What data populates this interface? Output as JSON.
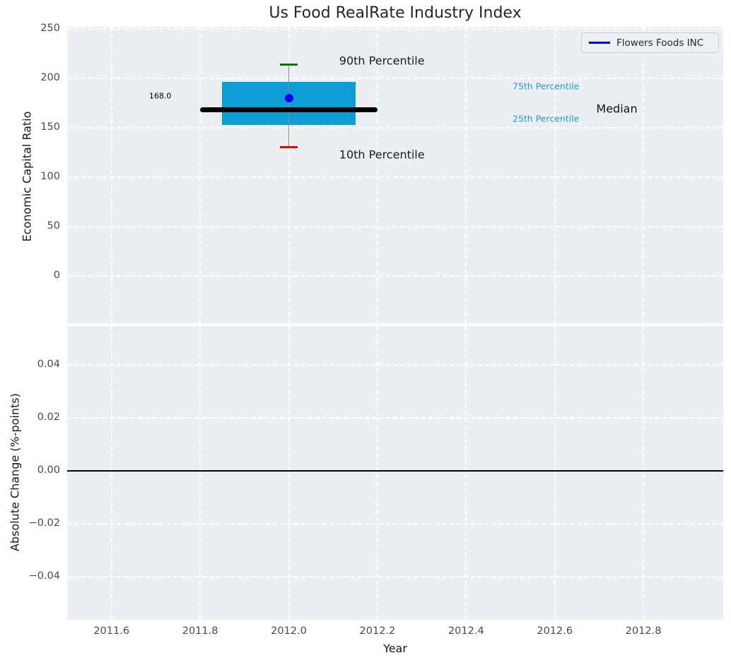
{
  "title": "Us Food RealRate Industry Index",
  "legend": {
    "label": "Flowers Foods INC",
    "line_color": "#0000ee"
  },
  "colors": {
    "figure_bg": "#ffffff",
    "axes_bg": "#ebeff1",
    "grid": "#ffffff",
    "tick_label": "#3e4c60",
    "box_fill": "#0a9ed5",
    "median_line": "#000000",
    "whisker": "#8a8a8a",
    "cap_90th": "#007d00",
    "cap_10th": "#ee0000",
    "company_marker": "#0000ee",
    "percentile_label": "#1f9bcd",
    "zero_line": "#000000"
  },
  "chart_data": [
    {
      "type": "box",
      "title": "Us Food RealRate Industry Index",
      "ylabel": "Economic Capital Ratio",
      "xlabel": "",
      "xlim": [
        2011.5,
        2012.98
      ],
      "ylim": [
        -48,
        252
      ],
      "grid": true,
      "show_xtick_labels": false,
      "xticks": [
        2011.6,
        2011.8,
        2012.0,
        2012.2,
        2012.4,
        2012.6,
        2012.8
      ],
      "xtick_labels": [
        "2011.6",
        "2011.8",
        "2012.0",
        "2012.2",
        "2012.4",
        "2012.6",
        "2012.8"
      ],
      "yticks": [
        250,
        200,
        150,
        100,
        50,
        0
      ],
      "ytick_labels": [
        "250",
        "200",
        "150",
        "100",
        "50",
        "0"
      ],
      "box": {
        "year": 2012.0,
        "median": 168.0,
        "median_label": "168.0",
        "q1": 153,
        "q3": 196,
        "p10": 130,
        "p90": 214,
        "box_x": [
          2011.85,
          2012.15
        ],
        "median_x": [
          2011.8,
          2012.2
        ],
        "company_point": {
          "name": "Flowers Foods INC",
          "x": 2012.0,
          "y": 180
        }
      },
      "annotations": [
        {
          "text": "90th Percentile",
          "x": 2012.21,
          "y": 218,
          "size": 16,
          "color": "#1a1a1a"
        },
        {
          "text": "10th Percentile",
          "x": 2012.21,
          "y": 123,
          "size": 16,
          "color": "#1a1a1a"
        },
        {
          "text": "168.0",
          "x": 2011.71,
          "y": 182,
          "size": 11,
          "color": "#000000"
        },
        {
          "text": "75th Percentile",
          "x": 2012.58,
          "y": 192,
          "size": 12.5,
          "color": "#1f9bcd"
        },
        {
          "text": "25th Percentile",
          "x": 2012.58,
          "y": 159,
          "size": 12.5,
          "color": "#1f9bcd"
        },
        {
          "text": "Median",
          "x": 2012.74,
          "y": 169,
          "size": 16,
          "color": "#111111"
        }
      ]
    },
    {
      "type": "line",
      "title": "",
      "ylabel": "Absolute Change (%-points)",
      "xlabel": "Year",
      "xlim": [
        2011.5,
        2012.98
      ],
      "ylim": [
        -0.0561,
        0.0546
      ],
      "grid": true,
      "show_xtick_labels": true,
      "xticks": [
        2011.6,
        2011.8,
        2012.0,
        2012.2,
        2012.4,
        2012.6,
        2012.8
      ],
      "xtick_labels": [
        "2011.6",
        "2011.8",
        "2012.0",
        "2012.2",
        "2012.4",
        "2012.6",
        "2012.8"
      ],
      "yticks": [
        0.04,
        0.02,
        0.0,
        -0.02,
        -0.04
      ],
      "ytick_labels": [
        "0.04",
        "0.02",
        "0.00",
        "−0.02",
        "−0.04"
      ],
      "hline": 0.0,
      "series": []
    }
  ]
}
